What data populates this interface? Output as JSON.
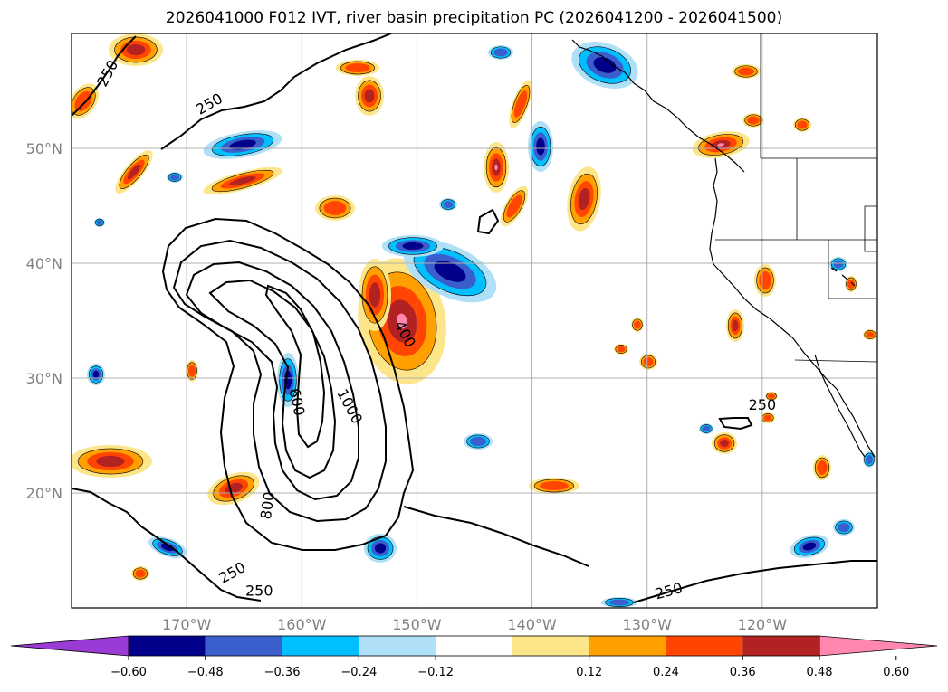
{
  "title": "2026041000 F012 IVT, river basin precipitation PC (2026041200 - 2026041500)",
  "map": {
    "lon_range": [
      -180,
      -110
    ],
    "lat_range": [
      10,
      60
    ],
    "lat_labels": [
      "20°N",
      "30°N",
      "40°N",
      "50°N"
    ],
    "lat_values": [
      20,
      30,
      40,
      50
    ],
    "lon_labels": [
      "170°W",
      "160°W",
      "150°W",
      "140°W",
      "130°W",
      "120°W"
    ],
    "lon_values": [
      -170,
      -160,
      -150,
      -140,
      -130,
      -120
    ],
    "grid": true,
    "ivt_contour_labels": [
      {
        "text": "250",
        "lon": -176.8,
        "lat": 56.5,
        "rot": -62
      },
      {
        "text": "250",
        "lon": -168.0,
        "lat": 53.8,
        "rot": -30
      },
      {
        "text": "400",
        "lon": -151.1,
        "lat": 33.8,
        "rot": 62
      },
      {
        "text": "1000",
        "lon": -155.9,
        "lat": 27.5,
        "rot": 62
      },
      {
        "text": "600",
        "lon": -160.5,
        "lat": 27.9,
        "rot": 78
      },
      {
        "text": "800",
        "lon": -162.9,
        "lat": 18.9,
        "rot": -82
      },
      {
        "text": "250",
        "lon": -166.0,
        "lat": 13.0,
        "rot": -30
      },
      {
        "text": "250",
        "lon": -163.7,
        "lat": 11.4,
        "rot": 0
      },
      {
        "text": "250",
        "lon": -120.0,
        "lat": 27.6,
        "rot": 0
      },
      {
        "text": "250",
        "lon": -128.1,
        "lat": 11.4,
        "rot": -15
      }
    ]
  },
  "colorbar": {
    "ticks": [
      "−0.60",
      "−0.48",
      "−0.36",
      "−0.24",
      "−0.12",
      "0.12",
      "0.24",
      "0.36",
      "0.48",
      "0.60"
    ],
    "colors": [
      "#9a3bd6",
      "#00008b",
      "#3a5fcd",
      "#00bfff",
      "#afe0f8",
      "#ffffff",
      "#fde68a",
      "#ff9f00",
      "#ff4500",
      "#b22222",
      "#ff87b0"
    ]
  },
  "colors": {
    "pos_weak": "#fde68a",
    "pos_mid": "#ff9f00",
    "pos_strong": "#ff4500",
    "pos_stronger": "#b22222",
    "pos_max": "#ff87b0",
    "neg_weak": "#afe0f8",
    "neg_mid": "#00bfff",
    "neg_strong": "#3a5fcd",
    "neg_max": "#00008b"
  }
}
